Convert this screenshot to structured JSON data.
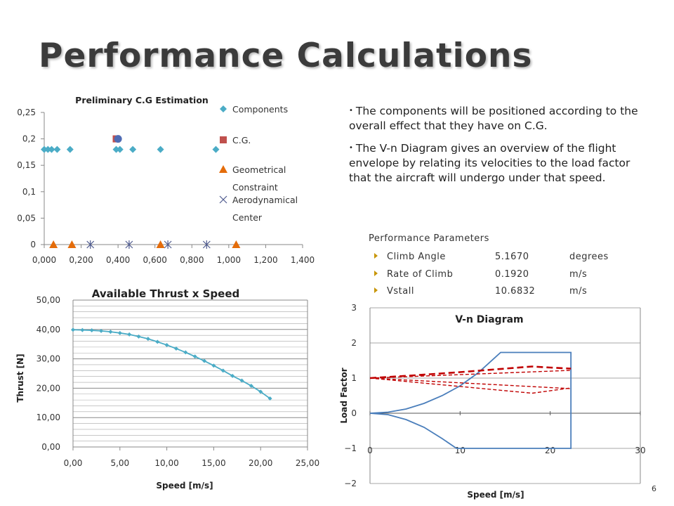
{
  "slide": {
    "title": "Performance Calculations",
    "page_number": "6"
  },
  "bullets": [
    "The components will be positioned according to the overall effect that they have on C.G.",
    "The V-n Diagram gives an overview of the flight envelope by relating its velocities to the load factor that the aircraft will undergo under that speed."
  ],
  "performance": {
    "heading": "Performance Parameters",
    "rows": [
      {
        "name": "Climb Angle",
        "value": "5.1670",
        "unit": "degrees"
      },
      {
        "name": "Rate of Climb",
        "value": "0.1920",
        "unit": "m/s"
      },
      {
        "name": "Vstall",
        "value": "10.6832",
        "unit": "m/s"
      }
    ]
  },
  "chart_data": [
    {
      "type": "scatter",
      "title": "Preliminary C.G Estimation",
      "xlim": [
        0,
        1.4
      ],
      "ylim": [
        0,
        0.25
      ],
      "x_ticks": [
        "0,000",
        "0,200",
        "0,400",
        "0,600",
        "0,800",
        "1,000",
        "1,200",
        "1,400"
      ],
      "y_ticks": [
        "0",
        "0,05",
        "0,1",
        "0,15",
        "0,2",
        "0,25"
      ],
      "legend_position": "right",
      "series": [
        {
          "name": "Components",
          "color": "#4bacc6",
          "marker": "diamond",
          "points": [
            [
              0.0,
              0.18
            ],
            [
              0.02,
              0.18
            ],
            [
              0.04,
              0.18
            ],
            [
              0.07,
              0.18
            ],
            [
              0.14,
              0.18
            ],
            [
              0.39,
              0.18
            ],
            [
              0.41,
              0.18
            ],
            [
              0.48,
              0.18
            ],
            [
              0.63,
              0.18
            ],
            [
              0.93,
              0.18
            ]
          ]
        },
        {
          "name": "C.G.",
          "color": "#c0504d",
          "marker": "square",
          "points": [
            [
              0.39,
              0.2
            ]
          ]
        },
        {
          "name": "Geometrical Constraint",
          "color": "#e46c0a",
          "marker": "triangle",
          "points": [
            [
              0.05,
              0.0
            ],
            [
              0.15,
              0.0
            ],
            [
              0.63,
              0.0
            ],
            [
              1.04,
              0.0
            ]
          ]
        },
        {
          "name": "Aerodynamical Center",
          "color": "#4f5b8f",
          "marker": "star",
          "points": [
            [
              0.25,
              0.0
            ],
            [
              0.46,
              0.0
            ],
            [
              0.67,
              0.0
            ],
            [
              0.88,
              0.0
            ]
          ]
        },
        {
          "name": "",
          "color": "#4f6bb4",
          "marker": "circle",
          "points": [
            [
              0.4,
              0.2
            ]
          ]
        }
      ]
    },
    {
      "type": "line",
      "title": "Available Thrust x Speed",
      "xlabel": "Speed [m/s]",
      "ylabel": "Thrust [N]",
      "xlim": [
        0,
        25
      ],
      "ylim": [
        0,
        50
      ],
      "x_ticks": [
        "0,00",
        "5,00",
        "10,00",
        "15,00",
        "20,00",
        "25,00"
      ],
      "y_ticks": [
        "0,00",
        "10,00",
        "20,00",
        "30,00",
        "40,00",
        "50,00"
      ],
      "grid": true,
      "series": [
        {
          "name": "",
          "color": "#4bacc6",
          "x": [
            0,
            1,
            2,
            3,
            4,
            5,
            6,
            7,
            8,
            9,
            10,
            11,
            12,
            13,
            14,
            15,
            16,
            17,
            18,
            19,
            20,
            21
          ],
          "y": [
            39.9,
            39.8,
            39.7,
            39.5,
            39.2,
            38.8,
            38.3,
            37.6,
            36.8,
            35.8,
            34.7,
            33.5,
            32.2,
            30.8,
            29.3,
            27.7,
            26.0,
            24.2,
            22.6,
            20.8,
            18.8,
            16.5
          ]
        }
      ]
    },
    {
      "type": "line",
      "title": "V-n Diagram",
      "xlabel": "Speed [m/s]",
      "ylabel": "Load Factor",
      "xlim": [
        0,
        30
      ],
      "ylim": [
        -2,
        3
      ],
      "x_ticks": [
        "0",
        "10",
        "20",
        "30"
      ],
      "y_ticks": [
        "−2",
        "−1",
        "0",
        "1",
        "2",
        "3"
      ],
      "grid": true,
      "series": [
        {
          "name": "",
          "color": "#4a7ebb",
          "style": "solid",
          "x": [
            0,
            2,
            4,
            6,
            8,
            10,
            12,
            14.5,
            22.3,
            22.3,
            18.0,
            9.6,
            8,
            6,
            4,
            2,
            0
          ],
          "y": [
            0,
            0.03,
            0.12,
            0.28,
            0.5,
            0.78,
            1.15,
            1.73,
            1.73,
            -1.0,
            -1.0,
            -1.0,
            -0.72,
            -0.4,
            -0.18,
            -0.04,
            0
          ]
        },
        {
          "name": "",
          "color": "#c00000",
          "style": "dashed-bold",
          "x": [
            0,
            5,
            10,
            15,
            18,
            20,
            22.3
          ],
          "y": [
            1.0,
            1.08,
            1.17,
            1.27,
            1.33,
            1.3,
            1.27
          ]
        },
        {
          "name": "",
          "color": "#c00000",
          "style": "dashed",
          "x": [
            0,
            22.3
          ],
          "y": [
            1.0,
            1.22
          ]
        },
        {
          "name": "",
          "color": "#c00000",
          "style": "dashed",
          "x": [
            0,
            22.3
          ],
          "y": [
            1.0,
            0.7
          ]
        },
        {
          "name": "",
          "color": "#c00000",
          "style": "dashed",
          "x": [
            0,
            18.0,
            22.3
          ],
          "y": [
            1.0,
            0.57,
            0.72
          ]
        }
      ]
    }
  ]
}
